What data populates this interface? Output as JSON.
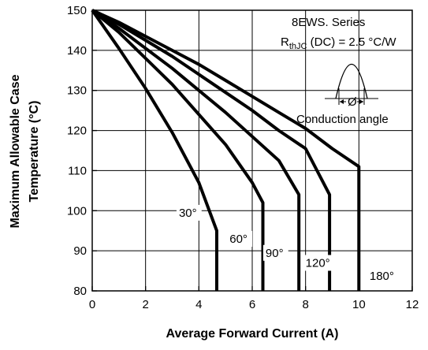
{
  "chart_data": {
    "type": "line",
    "xlabel": "Average Forward Current (A)",
    "ylabel_line1": "Maximum Allowable Case",
    "ylabel_line2": "Temperature (°C)",
    "xlim": [
      0,
      12
    ],
    "ylim": [
      80,
      150
    ],
    "x_ticks": [
      0,
      2,
      4,
      6,
      8,
      10,
      12
    ],
    "y_ticks": [
      80,
      90,
      100,
      110,
      120,
      130,
      140,
      150
    ],
    "grid": true,
    "annotation": {
      "series_text": "8EWS. Series",
      "rth_main": "R",
      "rth_sub": "thJC",
      "rth_rest": " (DC) = 2.5 °C/W",
      "conduction_symbol": "Ø",
      "conduction_label": "Conduction angle"
    },
    "series": [
      {
        "name": "30°",
        "x": [
          0,
          1,
          2,
          3,
          4,
          4.67,
          4.67
        ],
        "y": [
          150,
          140.5,
          130.5,
          119.5,
          107.0,
          95,
          80
        ]
      },
      {
        "name": "60°",
        "x": [
          0,
          1,
          2,
          3,
          4,
          5,
          6,
          6.4,
          6.4
        ],
        "y": [
          150,
          144.5,
          138.0,
          131.5,
          124.0,
          116.5,
          107.0,
          102,
          80
        ]
      },
      {
        "name": "90°",
        "x": [
          0,
          1,
          2,
          3,
          4,
          5,
          6,
          7,
          7.75,
          7.75
        ],
        "y": [
          150,
          145.5,
          140.5,
          135.5,
          130.0,
          124.5,
          118.5,
          112.5,
          104,
          80
        ]
      },
      {
        "name": "120°",
        "x": [
          0,
          1,
          2,
          3,
          4,
          5,
          6,
          7,
          8,
          8.9,
          8.9
        ],
        "y": [
          150,
          146.5,
          142.5,
          138.5,
          134.0,
          129.5,
          125.0,
          120.0,
          115.5,
          104,
          80
        ]
      },
      {
        "name": "180°",
        "x": [
          0,
          1,
          2,
          3,
          4,
          5,
          6,
          7,
          8,
          9,
          10,
          10,
          10
        ],
        "y": [
          150,
          147.0,
          143.5,
          140.0,
          136.5,
          132.5,
          128.5,
          124.5,
          120.5,
          115.5,
          111,
          105,
          80
        ]
      }
    ],
    "curve_labels": [
      {
        "text": "30°",
        "x": 3.25,
        "y": 98.5
      },
      {
        "text": "60°",
        "x": 5.15,
        "y": 92.0
      },
      {
        "text": "90°",
        "x": 6.5,
        "y": 88.5
      },
      {
        "text": "120°",
        "x": 8.0,
        "y": 86.0
      },
      {
        "text": "180°",
        "x": 10.4,
        "y": 82.8
      }
    ]
  }
}
